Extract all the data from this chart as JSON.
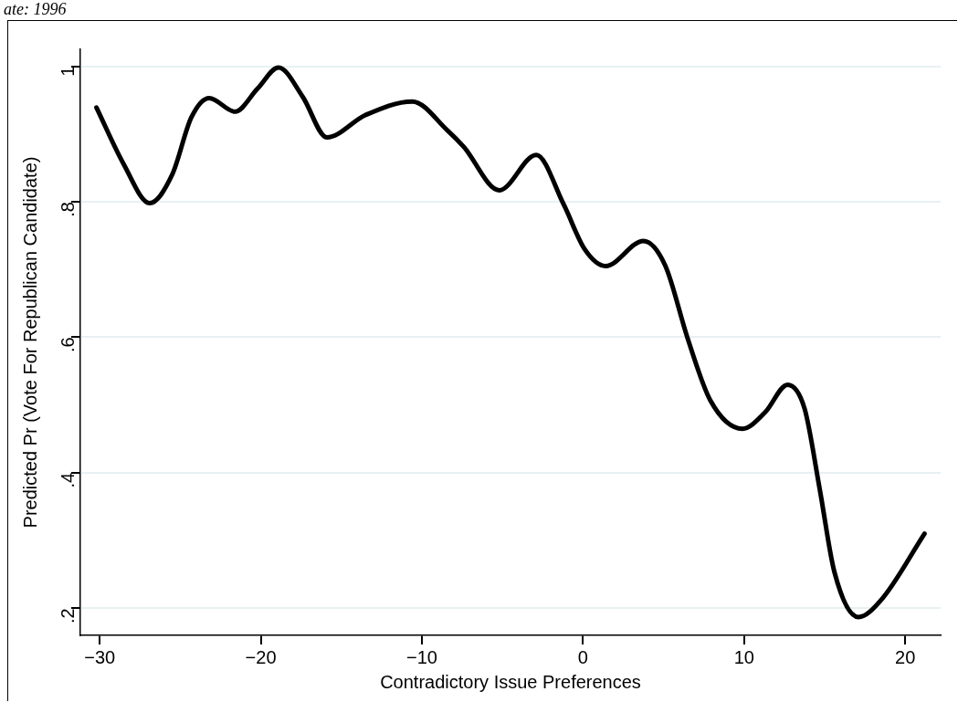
{
  "chart_data": {
    "type": "line",
    "xlabel": "Contradictory Issue Preferences",
    "ylabel": "Predicted Pr (Vote For Republican Candidate)",
    "annotations": [
      "ate: 1996"
    ],
    "series": [
      {
        "color": "#000000",
        "x": [
          -30.2,
          -28.5,
          -26.9,
          -25.5,
          -24.3,
          -23.2,
          -21.6,
          -20.2,
          -18.9,
          -17.4,
          -15.9,
          -13.5,
          -10.6,
          -8.4,
          -7.4,
          -5.2,
          -2.9,
          -1.2,
          0.1,
          1.4,
          3.75,
          5.1,
          6.5,
          7.9,
          9.9,
          11.3,
          12.7,
          13.75,
          14.7,
          15.6,
          17.1,
          18.5,
          21.2
        ],
        "values": [
          0.939,
          0.855,
          0.798,
          0.84,
          0.925,
          0.953,
          0.933,
          0.967,
          0.998,
          0.955,
          0.895,
          0.928,
          0.948,
          0.905,
          0.881,
          0.817,
          0.869,
          0.796,
          0.73,
          0.705,
          0.742,
          0.706,
          0.598,
          0.507,
          0.465,
          0.489,
          0.53,
          0.495,
          0.375,
          0.254,
          0.187,
          0.212,
          0.31
        ]
      }
    ],
    "xlim": [
      -31.2,
      22.2
    ],
    "xticks": [
      {
        "value": -30,
        "label": "−30"
      },
      {
        "value": -20,
        "label": "−20"
      },
      {
        "value": -10,
        "label": "−10"
      },
      0,
      10,
      20
    ],
    "ylim": [
      0.16,
      1.025
    ],
    "yticks": [
      {
        "value": 0.2,
        "label": ".2"
      },
      {
        "value": 0.4,
        "label": ".4"
      },
      {
        "value": 0.6,
        "label": ".6"
      },
      {
        "value": 0.8,
        "label": ".8"
      },
      1
    ],
    "grid": "y",
    "marker": "none",
    "line_style": "solid",
    "legend": false
  }
}
